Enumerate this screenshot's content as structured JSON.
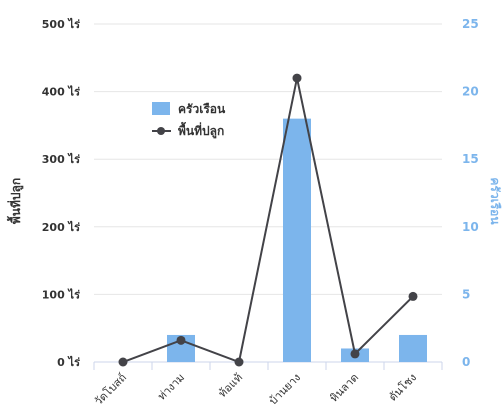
{
  "colors": {
    "bar": "#7cb5ec",
    "line": "#434348",
    "grid": "#e6e6e6",
    "right_axis": "#7cb5ec",
    "left_axis": "#333333"
  },
  "chart_data": {
    "type": "bar",
    "categories": [
      "วัดโบสถ์",
      "ท่างาม",
      "ท้อแท้",
      "บ้านยาง",
      "หินลาด",
      "ดันโชง"
    ],
    "ylabel_left": "พื้นที่ปลูก",
    "ylabel_right": "ครัวเรือน",
    "left_axis": {
      "range": [
        0,
        500
      ],
      "ticks": [
        "0 ไร่",
        "100 ไร่",
        "200 ไร่",
        "300 ไร่",
        "400 ไร่",
        "500 ไร่"
      ]
    },
    "right_axis": {
      "range": [
        0,
        25
      ],
      "ticks": [
        "0",
        "5",
        "10",
        "15",
        "20",
        "25"
      ]
    },
    "grid": true,
    "legend_position": "top-left (inside plot)",
    "series": [
      {
        "name": "ครัวเรือน",
        "type": "bar",
        "axis": "right",
        "values": [
          0,
          2,
          0,
          18,
          1,
          2
        ]
      },
      {
        "name": "พื้นที่ปลูก",
        "type": "line",
        "axis": "left",
        "values": [
          0,
          32,
          0,
          420,
          12,
          97
        ]
      }
    ]
  }
}
